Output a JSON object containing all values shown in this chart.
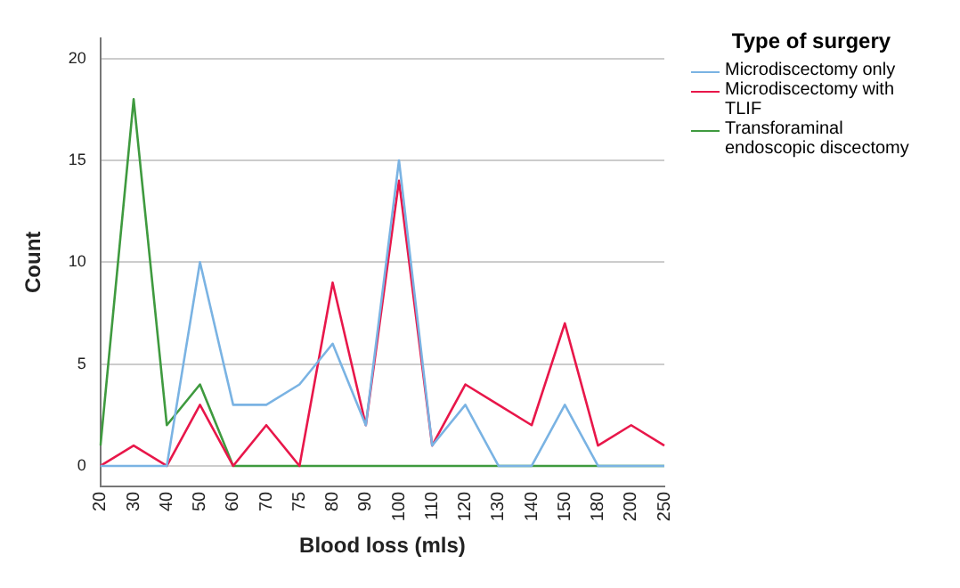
{
  "chart_data": {
    "type": "line",
    "xlabel": "Blood loss (mls)",
    "ylabel": "Count",
    "legend_title": "Type of surgery",
    "categories": [
      "20",
      "30",
      "40",
      "50",
      "60",
      "70",
      "75",
      "80",
      "90",
      "100",
      "110",
      "120",
      "130",
      "140",
      "150",
      "180",
      "200",
      "250"
    ],
    "series": [
      {
        "name": "Microdiscectomy only",
        "color": "#7ab3e3",
        "values": [
          0,
          0,
          0,
          10,
          3,
          3,
          4,
          6,
          2,
          15,
          1,
          3,
          0,
          0,
          3,
          0,
          0,
          0
        ]
      },
      {
        "name": "Microdiscectomy with TLIF",
        "color": "#e8174a",
        "values": [
          0,
          1,
          0,
          3,
          0,
          2,
          0,
          9,
          2,
          14,
          1,
          4,
          3,
          2,
          7,
          1,
          2,
          1
        ]
      },
      {
        "name": "Transforaminal endoscopic discectomy",
        "color": "#3f9a3f",
        "values": [
          1,
          18,
          2,
          4,
          0,
          0,
          0,
          0,
          0,
          0,
          0,
          0,
          0,
          0,
          0,
          0,
          0,
          0
        ]
      }
    ],
    "ylim": [
      -1,
      21
    ],
    "yticks": [
      0,
      5,
      10,
      15,
      20
    ],
    "grid": "y",
    "legend": "right",
    "marker": "none",
    "line_style": "solid"
  }
}
